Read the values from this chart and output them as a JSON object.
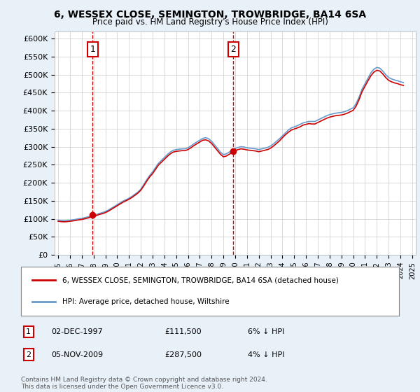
{
  "title": "6, WESSEX CLOSE, SEMINGTON, TROWBRIDGE, BA14 6SA",
  "subtitle": "Price paid vs. HM Land Registry's House Price Index (HPI)",
  "legend_line1": "6, WESSEX CLOSE, SEMINGTON, TROWBRIDGE, BA14 6SA (detached house)",
  "legend_line2": "HPI: Average price, detached house, Wiltshire",
  "sale1_label": "1",
  "sale1_date": "02-DEC-1997",
  "sale1_price": "£111,500",
  "sale1_hpi": "6% ↓ HPI",
  "sale2_label": "2",
  "sale2_date": "05-NOV-2009",
  "sale2_price": "£287,500",
  "sale2_hpi": "4% ↓ HPI",
  "footnote": "Contains HM Land Registry data © Crown copyright and database right 2024.\nThis data is licensed under the Open Government Licence v3.0.",
  "bg_color": "#e8f0f8",
  "plot_bg": "#ffffff",
  "hpi_color": "#6699cc",
  "price_color": "#cc0000",
  "vline_color": "#cc0000",
  "ylim": [
    0,
    620000
  ],
  "yticks": [
    0,
    50000,
    100000,
    150000,
    200000,
    250000,
    300000,
    350000,
    400000,
    450000,
    500000,
    550000,
    600000
  ],
  "ytick_labels": [
    "£0",
    "£50K",
    "£100K",
    "£150K",
    "£200K",
    "£250K",
    "£300K",
    "£350K",
    "£400K",
    "£450K",
    "£500K",
    "£550K",
    "£600K"
  ],
  "sale1_year": 1997.92,
  "sale1_value": 111500,
  "sale2_year": 2009.84,
  "sale2_value": 287500,
  "hpi_years": [
    1995.0,
    1995.25,
    1995.5,
    1995.75,
    1996.0,
    1996.25,
    1996.5,
    1996.75,
    1997.0,
    1997.25,
    1997.5,
    1997.75,
    1998.0,
    1998.25,
    1998.5,
    1998.75,
    1999.0,
    1999.25,
    1999.5,
    1999.75,
    2000.0,
    2000.25,
    2000.5,
    2000.75,
    2001.0,
    2001.25,
    2001.5,
    2001.75,
    2002.0,
    2002.25,
    2002.5,
    2002.75,
    2003.0,
    2003.25,
    2003.5,
    2003.75,
    2004.0,
    2004.25,
    2004.5,
    2004.75,
    2005.0,
    2005.25,
    2005.5,
    2005.75,
    2006.0,
    2006.25,
    2006.5,
    2006.75,
    2007.0,
    2007.25,
    2007.5,
    2007.75,
    2008.0,
    2008.25,
    2008.5,
    2008.75,
    2009.0,
    2009.25,
    2009.5,
    2009.75,
    2010.0,
    2010.25,
    2010.5,
    2010.75,
    2011.0,
    2011.25,
    2011.5,
    2011.75,
    2012.0,
    2012.25,
    2012.5,
    2012.75,
    2013.0,
    2013.25,
    2013.5,
    2013.75,
    2014.0,
    2014.25,
    2014.5,
    2014.75,
    2015.0,
    2015.25,
    2015.5,
    2015.75,
    2016.0,
    2016.25,
    2016.5,
    2016.75,
    2017.0,
    2017.25,
    2017.5,
    2017.75,
    2018.0,
    2018.25,
    2018.5,
    2018.75,
    2019.0,
    2019.25,
    2019.5,
    2019.75,
    2020.0,
    2020.25,
    2020.5,
    2020.75,
    2021.0,
    2021.25,
    2021.5,
    2021.75,
    2022.0,
    2022.25,
    2022.5,
    2022.75,
    2023.0,
    2023.25,
    2023.5,
    2023.75,
    2024.0,
    2024.25
  ],
  "hpi_values": [
    96000,
    95000,
    94500,
    95000,
    96000,
    97000,
    98500,
    100000,
    101000,
    103000,
    105000,
    107000,
    110000,
    112000,
    115000,
    117000,
    120000,
    124000,
    129000,
    134000,
    139000,
    144000,
    149000,
    153000,
    157000,
    162000,
    168000,
    174000,
    182000,
    195000,
    208000,
    220000,
    230000,
    242000,
    254000,
    262000,
    270000,
    278000,
    285000,
    290000,
    292000,
    293000,
    294000,
    294000,
    297000,
    302000,
    308000,
    313000,
    318000,
    323000,
    325000,
    322000,
    315000,
    305000,
    295000,
    285000,
    278000,
    280000,
    285000,
    290000,
    295000,
    298000,
    300000,
    299000,
    297000,
    296000,
    295000,
    294000,
    292000,
    294000,
    296000,
    298000,
    302000,
    308000,
    315000,
    322000,
    330000,
    338000,
    346000,
    352000,
    355000,
    358000,
    362000,
    366000,
    368000,
    370000,
    370000,
    370000,
    374000,
    378000,
    382000,
    386000,
    389000,
    391000,
    393000,
    394000,
    395000,
    397000,
    400000,
    404000,
    408000,
    420000,
    438000,
    460000,
    475000,
    490000,
    505000,
    515000,
    520000,
    518000,
    510000,
    500000,
    492000,
    488000,
    485000,
    483000,
    480000,
    478000
  ],
  "price_years": [
    1995.0,
    1995.25,
    1995.5,
    1995.75,
    1996.0,
    1996.25,
    1996.5,
    1996.75,
    1997.0,
    1997.25,
    1997.5,
    1997.75,
    1998.0,
    1998.25,
    1998.5,
    1998.75,
    1999.0,
    1999.25,
    1999.5,
    1999.75,
    2000.0,
    2000.25,
    2000.5,
    2000.75,
    2001.0,
    2001.25,
    2001.5,
    2001.75,
    2002.0,
    2002.25,
    2002.5,
    2002.75,
    2003.0,
    2003.25,
    2003.5,
    2003.75,
    2004.0,
    2004.25,
    2004.5,
    2004.75,
    2005.0,
    2005.25,
    2005.5,
    2005.75,
    2006.0,
    2006.25,
    2006.5,
    2006.75,
    2007.0,
    2007.25,
    2007.5,
    2007.75,
    2008.0,
    2008.25,
    2008.5,
    2008.75,
    2009.0,
    2009.25,
    2009.5,
    2009.75,
    2010.0,
    2010.25,
    2010.5,
    2010.75,
    2011.0,
    2011.25,
    2011.5,
    2011.75,
    2012.0,
    2012.25,
    2012.5,
    2012.75,
    2013.0,
    2013.25,
    2013.5,
    2013.75,
    2014.0,
    2014.25,
    2014.5,
    2014.75,
    2015.0,
    2015.25,
    2015.5,
    2015.75,
    2016.0,
    2016.25,
    2016.5,
    2016.75,
    2017.0,
    2017.25,
    2017.5,
    2017.75,
    2018.0,
    2018.25,
    2018.5,
    2018.75,
    2019.0,
    2019.25,
    2019.5,
    2019.75,
    2020.0,
    2020.25,
    2020.5,
    2020.75,
    2021.0,
    2021.25,
    2021.5,
    2021.75,
    2022.0,
    2022.25,
    2022.5,
    2022.75,
    2023.0,
    2023.25,
    2023.5,
    2023.75,
    2024.0,
    2024.25
  ],
  "price_values": [
    93000,
    92000,
    91500,
    92000,
    93000,
    94000,
    95500,
    97000,
    98000,
    100000,
    102000,
    104500,
    107000,
    109000,
    112000,
    114000,
    117000,
    121000,
    126000,
    131000,
    136000,
    141000,
    146000,
    150000,
    154000,
    159000,
    165000,
    171000,
    179000,
    191000,
    204000,
    216000,
    225000,
    237000,
    249000,
    257000,
    265000,
    273000,
    280000,
    285000,
    287000,
    288000,
    289000,
    289000,
    292000,
    297000,
    303000,
    308000,
    313000,
    318000,
    319000,
    316000,
    309000,
    299000,
    289000,
    279000,
    272000,
    274000,
    279000,
    284000,
    289000,
    292000,
    294000,
    293000,
    291000,
    290000,
    289000,
    288000,
    286000,
    288000,
    290000,
    292000,
    296000,
    302000,
    309000,
    316000,
    325000,
    333000,
    340000,
    346000,
    349000,
    352000,
    355000,
    360000,
    362000,
    364000,
    363000,
    363000,
    367000,
    371000,
    375000,
    379000,
    382000,
    384000,
    386000,
    387000,
    388000,
    390000,
    393000,
    397000,
    401000,
    413000,
    431000,
    453000,
    468000,
    483000,
    497000,
    507000,
    512000,
    510000,
    502000,
    492000,
    484000,
    480000,
    477000,
    475000,
    472000,
    470000
  ]
}
